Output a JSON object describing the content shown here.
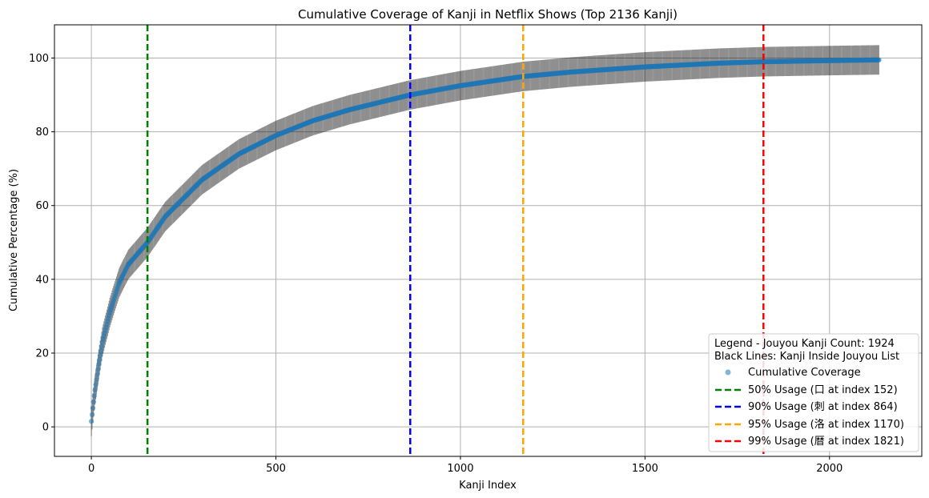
{
  "chart_data": {
    "type": "scatter",
    "title": "Cumulative Coverage of Kanji in Netflix Shows (Top 2136 Kanji)",
    "xlabel": "Kanji Index",
    "ylabel": "Cumulative Percentage (%)",
    "xlim": [
      -100,
      2250
    ],
    "ylim": [
      -8,
      109
    ],
    "xticks": [
      0,
      500,
      1000,
      1500,
      2000
    ],
    "yticks": [
      0,
      20,
      40,
      60,
      80,
      100
    ],
    "grid": true,
    "n_points": 2136,
    "curve_samples": {
      "x": [
        0,
        5,
        10,
        20,
        30,
        50,
        75,
        100,
        152,
        200,
        300,
        400,
        500,
        600,
        700,
        864,
        1000,
        1170,
        1300,
        1500,
        1700,
        1821,
        2000,
        2135
      ],
      "y": [
        1.5,
        6,
        10,
        17,
        23,
        31,
        39,
        44,
        50,
        57,
        67,
        74,
        79,
        83,
        86,
        90,
        92.5,
        95,
        96.2,
        97.6,
        98.6,
        99,
        99.3,
        99.5
      ]
    },
    "series": [
      {
        "name": "Cumulative Coverage",
        "color": "#1f77b4",
        "marker": "circle"
      }
    ],
    "black_lines": {
      "description": "Kanji Inside Jouyou List",
      "half_length_percent": 4,
      "color": "#000000",
      "x_start": 0,
      "x_end": 2135
    },
    "vlines": [
      {
        "x": 152,
        "label": "50% Usage (口 at index 152)",
        "color": "#008000"
      },
      {
        "x": 864,
        "label": "90% Usage (刺 at index 864)",
        "color": "#0000ff"
      },
      {
        "x": 1170,
        "label": "95% Usage (洛 at index 1170)",
        "color": "#ffa500"
      },
      {
        "x": 1821,
        "label": "99% Usage (暦 at index 1821)",
        "color": "#ff0000"
      }
    ],
    "legend": {
      "position": "bottom-right",
      "title_line1": "Legend - Jouyou Kanji Count: 1924",
      "title_line2": "Black Lines: Kanji Inside Jouyou List",
      "scatter_label": "Cumulative Coverage"
    }
  }
}
